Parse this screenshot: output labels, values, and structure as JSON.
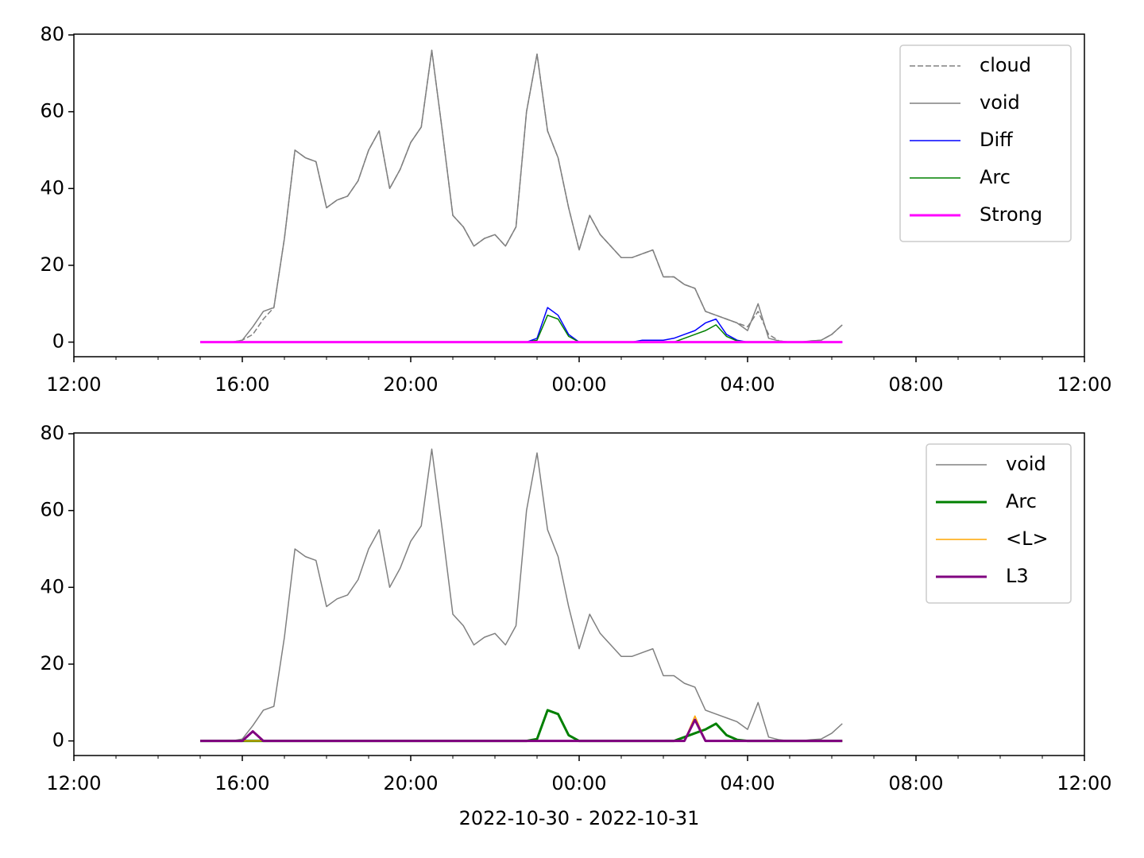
{
  "chart_data": [
    {
      "type": "line",
      "x": [
        15,
        15.25,
        15.5,
        15.75,
        16,
        16.25,
        16.5,
        16.75,
        17,
        17.25,
        17.5,
        17.75,
        18,
        18.25,
        18.5,
        18.75,
        19,
        19.25,
        19.5,
        19.75,
        20,
        20.25,
        20.5,
        20.75,
        21,
        21.25,
        21.5,
        21.75,
        22,
        22.25,
        22.5,
        22.75,
        23,
        23.25,
        23.5,
        23.75,
        24,
        24.25,
        24.5,
        24.75,
        25,
        25.25,
        25.5,
        25.75,
        26,
        26.25,
        26.5,
        26.75,
        27,
        27.25,
        27.5,
        27.75,
        28,
        28.25,
        28.5,
        28.75,
        29,
        29.25,
        29.5,
        29.75,
        30,
        30.25
      ],
      "series": [
        {
          "name": "cloud",
          "color": "#808080",
          "linewidth": 1.5,
          "linestyle": "dashed",
          "values": [
            0,
            0,
            0,
            0,
            0.5,
            2,
            6,
            9,
            27,
            50,
            48,
            47,
            35,
            37,
            38,
            42,
            50,
            55,
            40,
            45,
            52,
            56,
            76,
            55,
            33,
            30,
            25,
            27,
            28,
            25,
            30,
            60,
            75,
            55,
            48,
            35,
            24,
            33,
            28,
            25,
            22,
            22,
            23,
            24,
            17,
            17,
            15,
            14,
            8,
            7,
            6,
            5,
            4,
            8,
            2,
            0.3,
            0,
            0,
            0.3,
            0.5,
            2,
            4.5
          ]
        },
        {
          "name": "void",
          "color": "#808080",
          "linewidth": 1.5,
          "linestyle": "solid",
          "values": [
            0,
            0,
            0,
            0,
            0.5,
            4,
            8,
            9,
            27,
            50,
            48,
            47,
            35,
            37,
            38,
            42,
            50,
            55,
            40,
            45,
            52,
            56,
            76,
            55,
            33,
            30,
            25,
            27,
            28,
            25,
            30,
            60,
            75,
            55,
            48,
            35,
            24,
            33,
            28,
            25,
            22,
            22,
            23,
            24,
            17,
            17,
            15,
            14,
            8,
            7,
            6,
            5,
            3,
            10,
            1,
            0.3,
            0,
            0,
            0.3,
            0.5,
            2,
            4.5
          ]
        },
        {
          "name": "Diff",
          "color": "#0000ff",
          "linewidth": 1.5,
          "linestyle": "solid",
          "values": [
            0,
            0,
            0,
            0,
            0,
            0,
            0,
            0,
            0,
            0,
            0,
            0,
            0,
            0,
            0,
            0,
            0,
            0,
            0,
            0,
            0,
            0,
            0,
            0,
            0,
            0,
            0,
            0,
            0,
            0,
            0,
            0,
            1,
            9,
            7,
            2,
            0,
            0,
            0,
            0,
            0,
            0,
            0.5,
            0.5,
            0.5,
            1,
            2,
            3,
            5,
            6,
            2,
            0.5,
            0,
            0,
            0,
            0,
            0,
            0,
            0,
            0,
            0,
            0
          ]
        },
        {
          "name": "Arc",
          "color": "#008000",
          "linewidth": 1.5,
          "linestyle": "solid",
          "values": [
            0,
            0,
            0,
            0,
            0,
            0,
            0,
            0,
            0,
            0,
            0,
            0,
            0,
            0,
            0,
            0,
            0,
            0,
            0,
            0,
            0,
            0,
            0,
            0,
            0,
            0,
            0,
            0,
            0,
            0,
            0,
            0,
            0.5,
            7,
            6,
            1.5,
            0,
            0,
            0,
            0,
            0,
            0,
            0,
            0,
            0,
            0,
            1,
            2,
            3,
            4.5,
            1.5,
            0.3,
            0,
            0,
            0,
            0,
            0,
            0,
            0,
            0,
            0,
            0
          ]
        },
        {
          "name": "Strong",
          "color": "#ff00ff",
          "linewidth": 3,
          "linestyle": "solid",
          "values": [
            0,
            0,
            0,
            0,
            0,
            0,
            0,
            0,
            0,
            0,
            0,
            0,
            0,
            0,
            0,
            0,
            0,
            0,
            0,
            0,
            0,
            0,
            0,
            0,
            0,
            0,
            0,
            0,
            0,
            0,
            0,
            0,
            0,
            0,
            0,
            0,
            0,
            0,
            0,
            0,
            0,
            0,
            0,
            0,
            0,
            0,
            0,
            0,
            0,
            0,
            0,
            0,
            0,
            0,
            0,
            0,
            0,
            0,
            0,
            0,
            0,
            0
          ]
        }
      ],
      "xlim": [
        12,
        36
      ],
      "xticks": [
        {
          "value": 12,
          "label": "12:00"
        },
        {
          "value": 16,
          "label": "16:00"
        },
        {
          "value": 20,
          "label": "20:00"
        },
        {
          "value": 24,
          "label": "00:00"
        },
        {
          "value": 28,
          "label": "04:00"
        },
        {
          "value": 32,
          "label": "08:00"
        },
        {
          "value": 36,
          "label": "12:00"
        }
      ],
      "xminorticks": [
        13,
        14,
        15,
        17,
        18,
        19,
        21,
        22,
        23,
        25,
        26,
        27,
        29,
        30,
        31,
        33,
        34,
        35
      ],
      "ylim": [
        -3.8,
        80.2
      ],
      "yticks": [
        0,
        20,
        40,
        60,
        80
      ],
      "legend": "upper right"
    },
    {
      "type": "line",
      "x": [
        15,
        15.25,
        15.5,
        15.75,
        16,
        16.25,
        16.5,
        16.75,
        17,
        17.25,
        17.5,
        17.75,
        18,
        18.25,
        18.5,
        18.75,
        19,
        19.25,
        19.5,
        19.75,
        20,
        20.25,
        20.5,
        20.75,
        21,
        21.25,
        21.5,
        21.75,
        22,
        22.25,
        22.5,
        22.75,
        23,
        23.25,
        23.5,
        23.75,
        24,
        24.25,
        24.5,
        24.75,
        25,
        25.25,
        25.5,
        25.75,
        26,
        26.25,
        26.5,
        26.75,
        27,
        27.25,
        27.5,
        27.75,
        28,
        28.25,
        28.5,
        28.75,
        29,
        29.25,
        29.5,
        29.75,
        30,
        30.25
      ],
      "series": [
        {
          "name": "void",
          "color": "#808080",
          "linewidth": 1.5,
          "linestyle": "solid",
          "values": [
            0,
            0,
            0,
            0,
            0.5,
            4,
            8,
            9,
            27,
            50,
            48,
            47,
            35,
            37,
            38,
            42,
            50,
            55,
            40,
            45,
            52,
            56,
            76,
            55,
            33,
            30,
            25,
            27,
            28,
            25,
            30,
            60,
            75,
            55,
            48,
            35,
            24,
            33,
            28,
            25,
            22,
            22,
            23,
            24,
            17,
            17,
            15,
            14,
            8,
            7,
            6,
            5,
            3,
            10,
            1,
            0.3,
            0,
            0,
            0.3,
            0.5,
            2,
            4.5
          ]
        },
        {
          "name": "Arc",
          "color": "#008000",
          "linewidth": 3,
          "linestyle": "solid",
          "values": [
            0,
            0,
            0,
            0,
            0,
            0,
            0,
            0,
            0,
            0,
            0,
            0,
            0,
            0,
            0,
            0,
            0,
            0,
            0,
            0,
            0,
            0,
            0,
            0,
            0,
            0,
            0,
            0,
            0,
            0,
            0,
            0,
            0.5,
            8,
            7,
            1.5,
            0,
            0,
            0,
            0,
            0,
            0,
            0,
            0,
            0,
            0,
            1,
            2,
            3,
            4.5,
            1.5,
            0.3,
            0,
            0,
            0,
            0,
            0,
            0,
            0,
            0,
            0,
            0
          ]
        },
        {
          "name": "<L>",
          "color": "#ffa500",
          "linewidth": 1.5,
          "linestyle": "solid",
          "values": [
            0,
            0,
            0,
            0,
            0,
            0,
            0,
            0,
            0,
            0,
            0,
            0,
            0,
            0,
            0,
            0,
            0,
            0,
            0,
            0,
            0,
            0,
            0,
            0,
            0,
            0,
            0,
            0,
            0,
            0,
            0,
            0,
            0,
            0,
            0,
            0,
            0,
            0,
            0,
            0,
            0,
            0,
            0,
            0,
            0,
            0,
            0,
            6.5,
            0,
            0,
            0,
            0,
            0,
            0,
            0,
            0,
            0,
            0,
            0,
            0,
            0,
            0
          ]
        },
        {
          "name": "L3",
          "color": "#800080",
          "linewidth": 3,
          "linestyle": "solid",
          "values": [
            0,
            0,
            0,
            0,
            0,
            2.5,
            0,
            0,
            0,
            0,
            0,
            0,
            0,
            0,
            0,
            0,
            0,
            0,
            0,
            0,
            0,
            0,
            0,
            0,
            0,
            0,
            0,
            0,
            0,
            0,
            0,
            0,
            0,
            0,
            0,
            0,
            0,
            0,
            0,
            0,
            0,
            0,
            0,
            0,
            0,
            0,
            0,
            5.5,
            0,
            0,
            0,
            0,
            0,
            0,
            0,
            0,
            0,
            0,
            0,
            0,
            0,
            0
          ]
        }
      ],
      "xlim": [
        12,
        36
      ],
      "xticks": [
        {
          "value": 12,
          "label": "12:00"
        },
        {
          "value": 16,
          "label": "16:00"
        },
        {
          "value": 20,
          "label": "20:00"
        },
        {
          "value": 24,
          "label": "00:00"
        },
        {
          "value": 28,
          "label": "04:00"
        },
        {
          "value": 32,
          "label": "08:00"
        },
        {
          "value": 36,
          "label": "12:00"
        }
      ],
      "xminorticks": [
        13,
        14,
        15,
        17,
        18,
        19,
        21,
        22,
        23,
        25,
        26,
        27,
        29,
        30,
        31,
        33,
        34,
        35
      ],
      "ylim": [
        -3.8,
        80.2
      ],
      "yticks": [
        0,
        20,
        40,
        60,
        80
      ],
      "xlabel": "2022-10-30 - 2022-10-31",
      "legend": "upper right"
    }
  ]
}
